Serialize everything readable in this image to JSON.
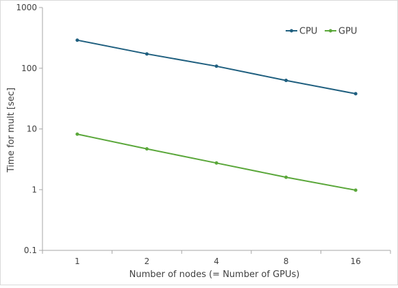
{
  "chart_data": {
    "type": "line",
    "title": "",
    "xlabel": "Number of nodes (= Number of GPUs)",
    "ylabel": "Time for mult [sec]",
    "x_scale": "category",
    "y_scale": "log",
    "ylim": [
      0.1,
      1000
    ],
    "y_ticks": [
      "0.1",
      "1",
      "10",
      "100",
      "1000"
    ],
    "categories": [
      "1",
      "2",
      "4",
      "8",
      "16"
    ],
    "grid": false,
    "legend_position": "top-right",
    "series": [
      {
        "name": "CPU",
        "color": "#1f5f7f",
        "values": [
          290,
          172,
          108,
          63,
          38
        ]
      },
      {
        "name": "GPU",
        "color": "#5aa73a",
        "values": [
          8.2,
          4.7,
          2.75,
          1.6,
          0.98
        ]
      }
    ]
  }
}
